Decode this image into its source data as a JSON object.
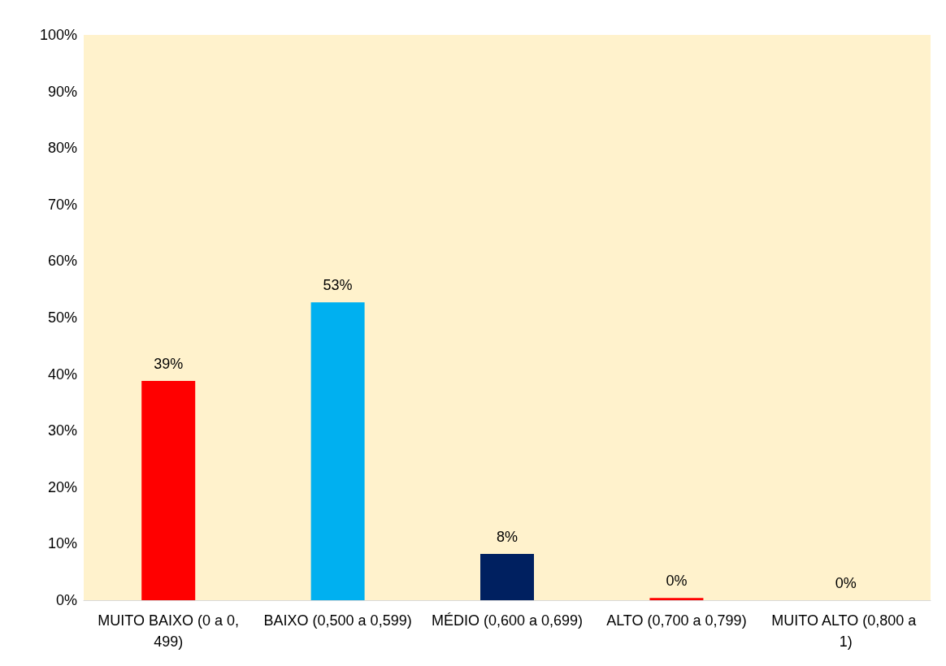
{
  "chart_data": {
    "type": "bar",
    "categories": [
      "MUITO BAIXO (0 a 0,499)",
      "BAIXO (0,500 a 0,599)",
      "MÉDIO (0,600 a 0,699)",
      "ALTO (0,700 a 0,799)",
      "MUITO ALTO (0,800 a 1)"
    ],
    "values": [
      38.8,
      52.7,
      8.2,
      0.4,
      0
    ],
    "colors": [
      "#ff0000",
      "#00b0f0",
      "#002060",
      "#ff0000",
      "#ff0000"
    ],
    "value_labels": [
      "39%",
      "53%",
      "8%",
      "0%",
      "0%"
    ],
    "ylim": [
      0,
      100
    ],
    "yticks": [
      {
        "value": 0,
        "label": "0%"
      },
      {
        "value": 10,
        "label": "10%"
      },
      {
        "value": 20,
        "label": "20%"
      },
      {
        "value": 30,
        "label": "30%"
      },
      {
        "value": 40,
        "label": "40%"
      },
      {
        "value": 50,
        "label": "50%"
      },
      {
        "value": 60,
        "label": "60%"
      },
      {
        "value": 70,
        "label": "70%"
      },
      {
        "value": 80,
        "label": "80%"
      },
      {
        "value": 90,
        "label": "90%"
      },
      {
        "value": 100,
        "label": "100%"
      }
    ],
    "grid": false
  }
}
